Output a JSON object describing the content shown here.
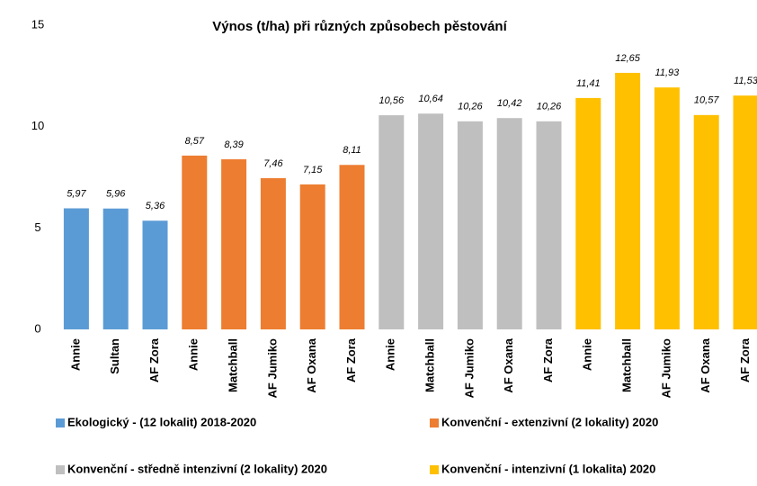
{
  "chart_data": {
    "type": "bar",
    "title": "Výnos (t/ha) při různých způsobech pěstování",
    "ylim": [
      0,
      15
    ],
    "yticks": [
      0,
      5,
      10,
      15
    ],
    "grid": false,
    "legend": "bottom",
    "series": [
      {
        "name": "Ekologický - (12 lokalit) 2018-2020",
        "color": "#5b9bd5",
        "categories": [
          "Annie",
          "Sultan",
          "AF Zora"
        ],
        "values": [
          5.97,
          5.96,
          5.36
        ],
        "value_labels": [
          "5,97",
          "5,96",
          "5,36"
        ]
      },
      {
        "name": "Konvenční - extenzivní (2 lokality) 2020",
        "color": "#ed7d31",
        "categories": [
          "Annie",
          "Matchball",
          "AF Jumiko",
          "AF Oxana",
          "AF Zora"
        ],
        "values": [
          8.57,
          8.39,
          7.46,
          7.15,
          8.11
        ],
        "value_labels": [
          "8,57",
          "8,39",
          "7,46",
          "7,15",
          "8,11"
        ]
      },
      {
        "name": "Konvenční - středně intenzivní (2 lokality) 2020",
        "color": "#bfbfbf",
        "categories": [
          "Annie",
          "Matchball",
          "AF Jumiko",
          "AF Oxana",
          "AF Zora"
        ],
        "values": [
          10.56,
          10.64,
          10.26,
          10.42,
          10.26
        ],
        "value_labels": [
          "10,56",
          "10,64",
          "10,26",
          "10,42",
          "10,26"
        ]
      },
      {
        "name": "Konvenční - intenzivní (1 lokalita) 2020",
        "color": "#ffc000",
        "categories": [
          "Annie",
          "Matchball",
          "AF Jumiko",
          "AF Oxana",
          "AF Zora"
        ],
        "values": [
          11.41,
          12.65,
          11.93,
          10.57,
          11.53
        ],
        "value_labels": [
          "11,41",
          "12,65",
          "11,93",
          "10,57",
          "11,53"
        ]
      }
    ]
  }
}
